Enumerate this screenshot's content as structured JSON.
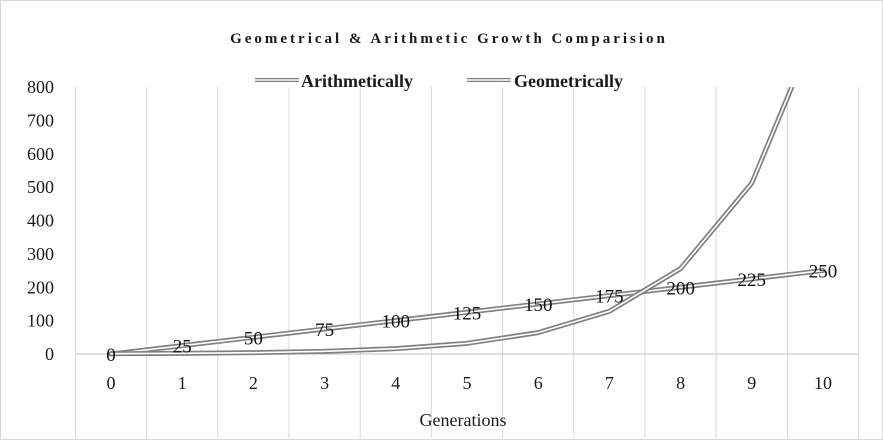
{
  "chart_data": {
    "type": "line",
    "title": "Geometrical & Arithmetic Growth Comparision",
    "xlabel": "Generations",
    "ylabel": "",
    "x": [
      0,
      1,
      2,
      3,
      4,
      5,
      6,
      7,
      8,
      9,
      10
    ],
    "ylim": [
      0,
      800
    ],
    "yticks": [
      0,
      100,
      200,
      300,
      400,
      500,
      600,
      700,
      800
    ],
    "grid": "vertical",
    "legend_placement": "top-center",
    "series": [
      {
        "name": "Arithmetically",
        "values": [
          0,
          25,
          50,
          75,
          100,
          125,
          150,
          175,
          200,
          225,
          250
        ],
        "data_labels": [
          "0",
          "25",
          "50",
          "75",
          "100",
          "125",
          "150",
          "175",
          "200",
          "225",
          "250"
        ],
        "color": "#808080"
      },
      {
        "name": "Geometrically",
        "values": [
          1,
          2,
          4,
          8,
          16,
          32,
          64,
          128,
          256,
          512,
          1024
        ],
        "color": "#808080"
      }
    ]
  }
}
